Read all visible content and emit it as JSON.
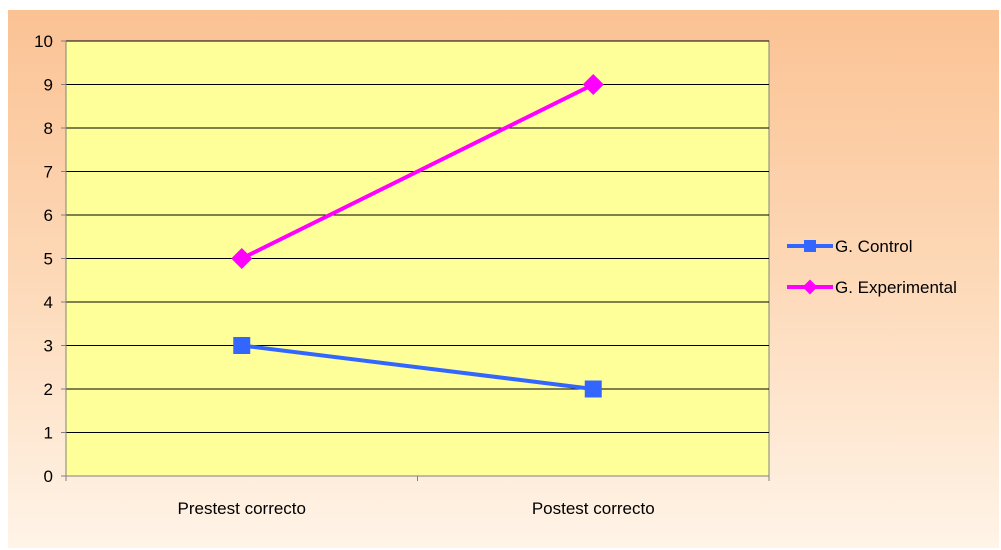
{
  "chart_data": {
    "type": "line",
    "categories": [
      "Prestest correcto",
      "Postest correcto"
    ],
    "series": [
      {
        "name": "G. Control",
        "values": [
          3,
          2
        ],
        "color": "#3366ff",
        "marker": "square"
      },
      {
        "name": "G. Experimental",
        "values": [
          5,
          9
        ],
        "color": "#ff00ff",
        "marker": "diamond"
      }
    ],
    "ylim": [
      0,
      10
    ],
    "yticks": [
      0,
      1,
      2,
      3,
      4,
      5,
      6,
      7,
      8,
      9,
      10
    ],
    "grid": true,
    "legend": "right",
    "plot_background": "#ffff99"
  }
}
